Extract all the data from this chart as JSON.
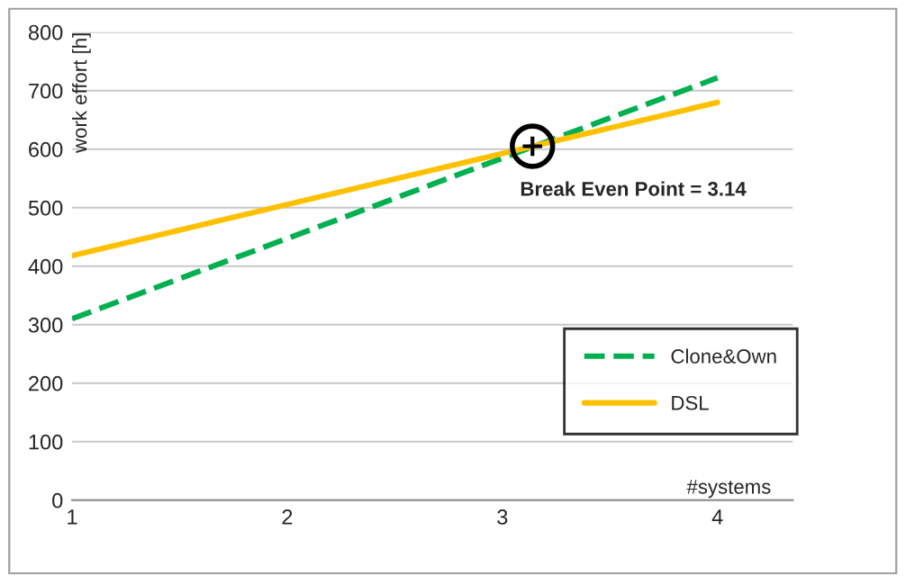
{
  "chart_data": {
    "type": "line",
    "xlabel": "#systems",
    "ylabel": "work effort [h]",
    "x": [
      1,
      4
    ],
    "series": [
      {
        "name": "Clone&Own",
        "color": "#00b050",
        "values": [
          310,
          722
        ],
        "line_style": "dashed"
      },
      {
        "name": "DSL",
        "color": "#ffc000",
        "values": [
          418,
          680
        ],
        "line_style": "solid"
      }
    ],
    "xlim": [
      1,
      4.35
    ],
    "ylim": [
      0,
      800
    ],
    "xticks": [
      1,
      2,
      3,
      4
    ],
    "yticks": [
      0,
      100,
      200,
      300,
      400,
      500,
      600,
      700,
      800
    ],
    "grid": "y",
    "legend": "bottom right",
    "marker": "none",
    "annotations": [
      {
        "text": "Break Even Point = 3.14",
        "x": 3.14,
        "y": 605
      }
    ]
  }
}
